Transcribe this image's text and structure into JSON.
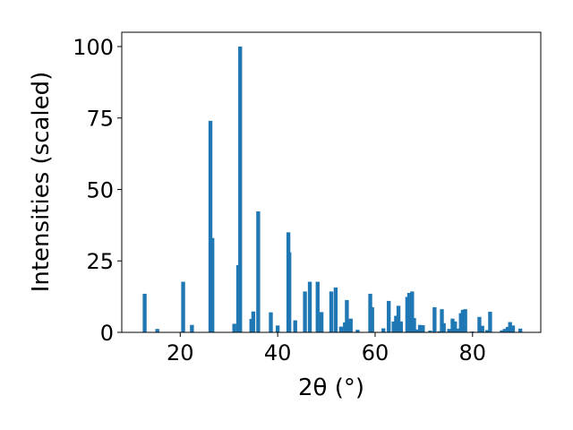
{
  "chart_data": {
    "type": "bar",
    "xlabel": "2θ (°)",
    "ylabel": "Intensities (scaled)",
    "xlim": [
      8,
      94
    ],
    "ylim": [
      0,
      105
    ],
    "xticks": [
      20,
      40,
      60,
      80
    ],
    "yticks": [
      0,
      25,
      50,
      75,
      100
    ],
    "bar_width_deg": 0.8,
    "color": "#1f77b4",
    "grid": false,
    "series": [
      {
        "x": [
          12.7,
          15.3,
          20.6,
          22.4,
          26.2,
          26.6,
          31.1,
          31.9,
          32.3,
          34.6,
          35.0,
          36.0,
          38.6,
          40.0,
          42.2,
          42.4,
          43.6,
          45.6,
          46.6,
          48.2,
          49.0,
          51.0,
          51.9,
          53.0,
          53.8,
          54.2,
          54.6,
          55.0,
          56.4,
          59.0,
          59.4,
          61.7,
          62.8,
          63.8,
          64.3,
          64.8,
          65.3,
          66.6,
          67.0,
          67.6,
          68.0,
          68.5,
          69.2,
          69.8,
          71.3,
          72.2,
          73.2,
          73.7,
          74.1,
          75.2,
          75.9,
          76.4,
          77.0,
          77.6,
          78.0,
          78.5,
          80.0,
          81.4,
          82.0,
          83.0,
          83.6,
          86.0,
          86.6,
          87.2,
          87.7,
          88.3,
          89.8
        ],
        "y": [
          13.5,
          1.2,
          17.7,
          2.6,
          74.0,
          33.0,
          3.0,
          23.5,
          100.0,
          4.7,
          7.3,
          42.3,
          7.0,
          2.4,
          35.0,
          28.0,
          4.2,
          14.3,
          17.7,
          17.7,
          7.1,
          14.3,
          15.7,
          2.0,
          3.5,
          11.3,
          4.3,
          4.8,
          0.9,
          13.5,
          8.8,
          1.4,
          11.0,
          3.8,
          5.8,
          9.3,
          3.8,
          12.4,
          13.8,
          14.3,
          5.0,
          1.0,
          2.6,
          2.5,
          0.6,
          8.8,
          0.4,
          8.1,
          3.2,
          1.2,
          4.8,
          3.8,
          1.3,
          6.7,
          7.9,
          8.1,
          0.3,
          5.4,
          2.3,
          0.8,
          7.2,
          0.7,
          1.2,
          1.9,
          3.6,
          2.4,
          1.3
        ]
      }
    ]
  }
}
